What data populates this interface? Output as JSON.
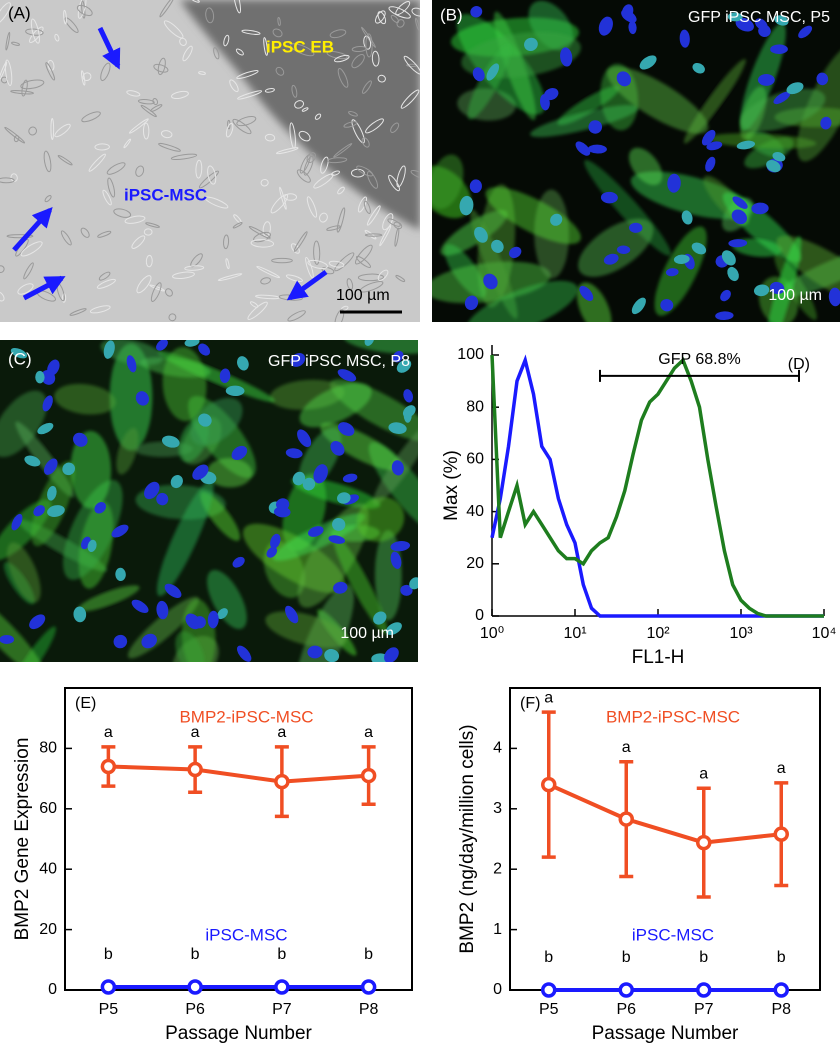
{
  "images": [
    {
      "label": "(A)",
      "annotations": [
        "iPSC EB",
        "iPSC-MSC"
      ],
      "scale_bar": "100 µm"
    },
    {
      "label": "(B)",
      "caption": "GFP iPSC MSC, P5",
      "scale_bar": "100 µm"
    },
    {
      "label": "(C)",
      "caption": "GFP iPSC MSC, P8",
      "scale_bar": "100 µm"
    }
  ],
  "chart_data": [
    {
      "type": "histogram-line",
      "label": "(D)",
      "xlabel": "FL1-H",
      "ylabel": "Max (%)",
      "xlog": true,
      "xlim": [
        1,
        10000
      ],
      "xticks": [
        {
          "value": 1,
          "label": "10⁰"
        },
        {
          "value": 10,
          "label": "10¹"
        },
        {
          "value": 100,
          "label": "10²"
        },
        {
          "value": 1000,
          "label": "10³"
        },
        {
          "value": 10000,
          "label": "10⁴"
        }
      ],
      "ylim": [
        0,
        100
      ],
      "yticks": [
        0,
        20,
        40,
        60,
        80,
        100
      ],
      "gate": {
        "label": "GFP 68.8%",
        "range": [
          20,
          5000
        ],
        "y": 92
      },
      "x": [
        1,
        1.26,
        1.58,
        2,
        2.51,
        3.16,
        3.98,
        5.01,
        6.31,
        7.94,
        10,
        12.6,
        15.8,
        20,
        25.1,
        31.6,
        39.8,
        50.1,
        63.1,
        79.4,
        100,
        126,
        158,
        200,
        251,
        316,
        398,
        501,
        631,
        794,
        1000,
        1260,
        1580,
        2000,
        2510,
        3160,
        3980,
        5010,
        6310,
        7940,
        10000
      ],
      "series": [
        {
          "color": "#1a1aff",
          "values": [
            30,
            45,
            65,
            90,
            98,
            85,
            65,
            60,
            45,
            35,
            28,
            12,
            3,
            0,
            0,
            0,
            0,
            0,
            0,
            0,
            0,
            0,
            0,
            0,
            0,
            0,
            0,
            0,
            0,
            0,
            0,
            0,
            0,
            0,
            0,
            0,
            0,
            0,
            0,
            0,
            0
          ]
        },
        {
          "color": "#1e7d1e",
          "values": [
            100,
            30,
            40,
            50,
            35,
            40,
            35,
            30,
            25,
            22,
            22,
            20,
            25,
            28,
            30,
            38,
            48,
            62,
            75,
            82,
            85,
            90,
            95,
            98,
            90,
            80,
            60,
            42,
            25,
            12,
            6,
            3,
            1,
            0,
            0,
            0,
            0,
            0,
            0,
            0,
            0
          ]
        }
      ]
    },
    {
      "type": "errorbar-line",
      "label": "(E)",
      "xlabel": "Passage Number",
      "ylabel": "BMP2 Gene Expression",
      "categories": [
        "P5",
        "P6",
        "P7",
        "P8"
      ],
      "ylim": [
        0,
        100
      ],
      "yticks": [
        0,
        20,
        40,
        60,
        80
      ],
      "series": [
        {
          "name": "BMP2-iPSC-MSC",
          "color": "#f04e23",
          "values": [
            74,
            73,
            69,
            71
          ],
          "errors": [
            6.5,
            7.5,
            11.5,
            9.5
          ],
          "letters": [
            "a",
            "a",
            "a",
            "a"
          ]
        },
        {
          "name": "iPSC-MSC",
          "color": "#1a1aff",
          "values": [
            1,
            1,
            1,
            1
          ],
          "letters": [
            "b",
            "b",
            "b",
            "b"
          ]
        }
      ]
    },
    {
      "type": "errorbar-line",
      "label": "(F)",
      "xlabel": "Passage Number",
      "ylabel": "BMP2 (ng/day/million cells)",
      "categories": [
        "P5",
        "P6",
        "P7",
        "P8"
      ],
      "ylim": [
        0,
        5
      ],
      "yticks": [
        0,
        1,
        2,
        3,
        4
      ],
      "series": [
        {
          "name": "BMP2-iPSC-MSC",
          "color": "#f04e23",
          "values": [
            3.4,
            2.83,
            2.44,
            2.58
          ],
          "errors": [
            1.2,
            0.95,
            0.9,
            0.85
          ],
          "letters": [
            "a",
            "a",
            "a",
            "a"
          ]
        },
        {
          "name": "iPSC-MSC",
          "color": "#1a1aff",
          "values": [
            0,
            0,
            0,
            0
          ],
          "letters": [
            "b",
            "b",
            "b",
            "b"
          ]
        }
      ]
    }
  ]
}
